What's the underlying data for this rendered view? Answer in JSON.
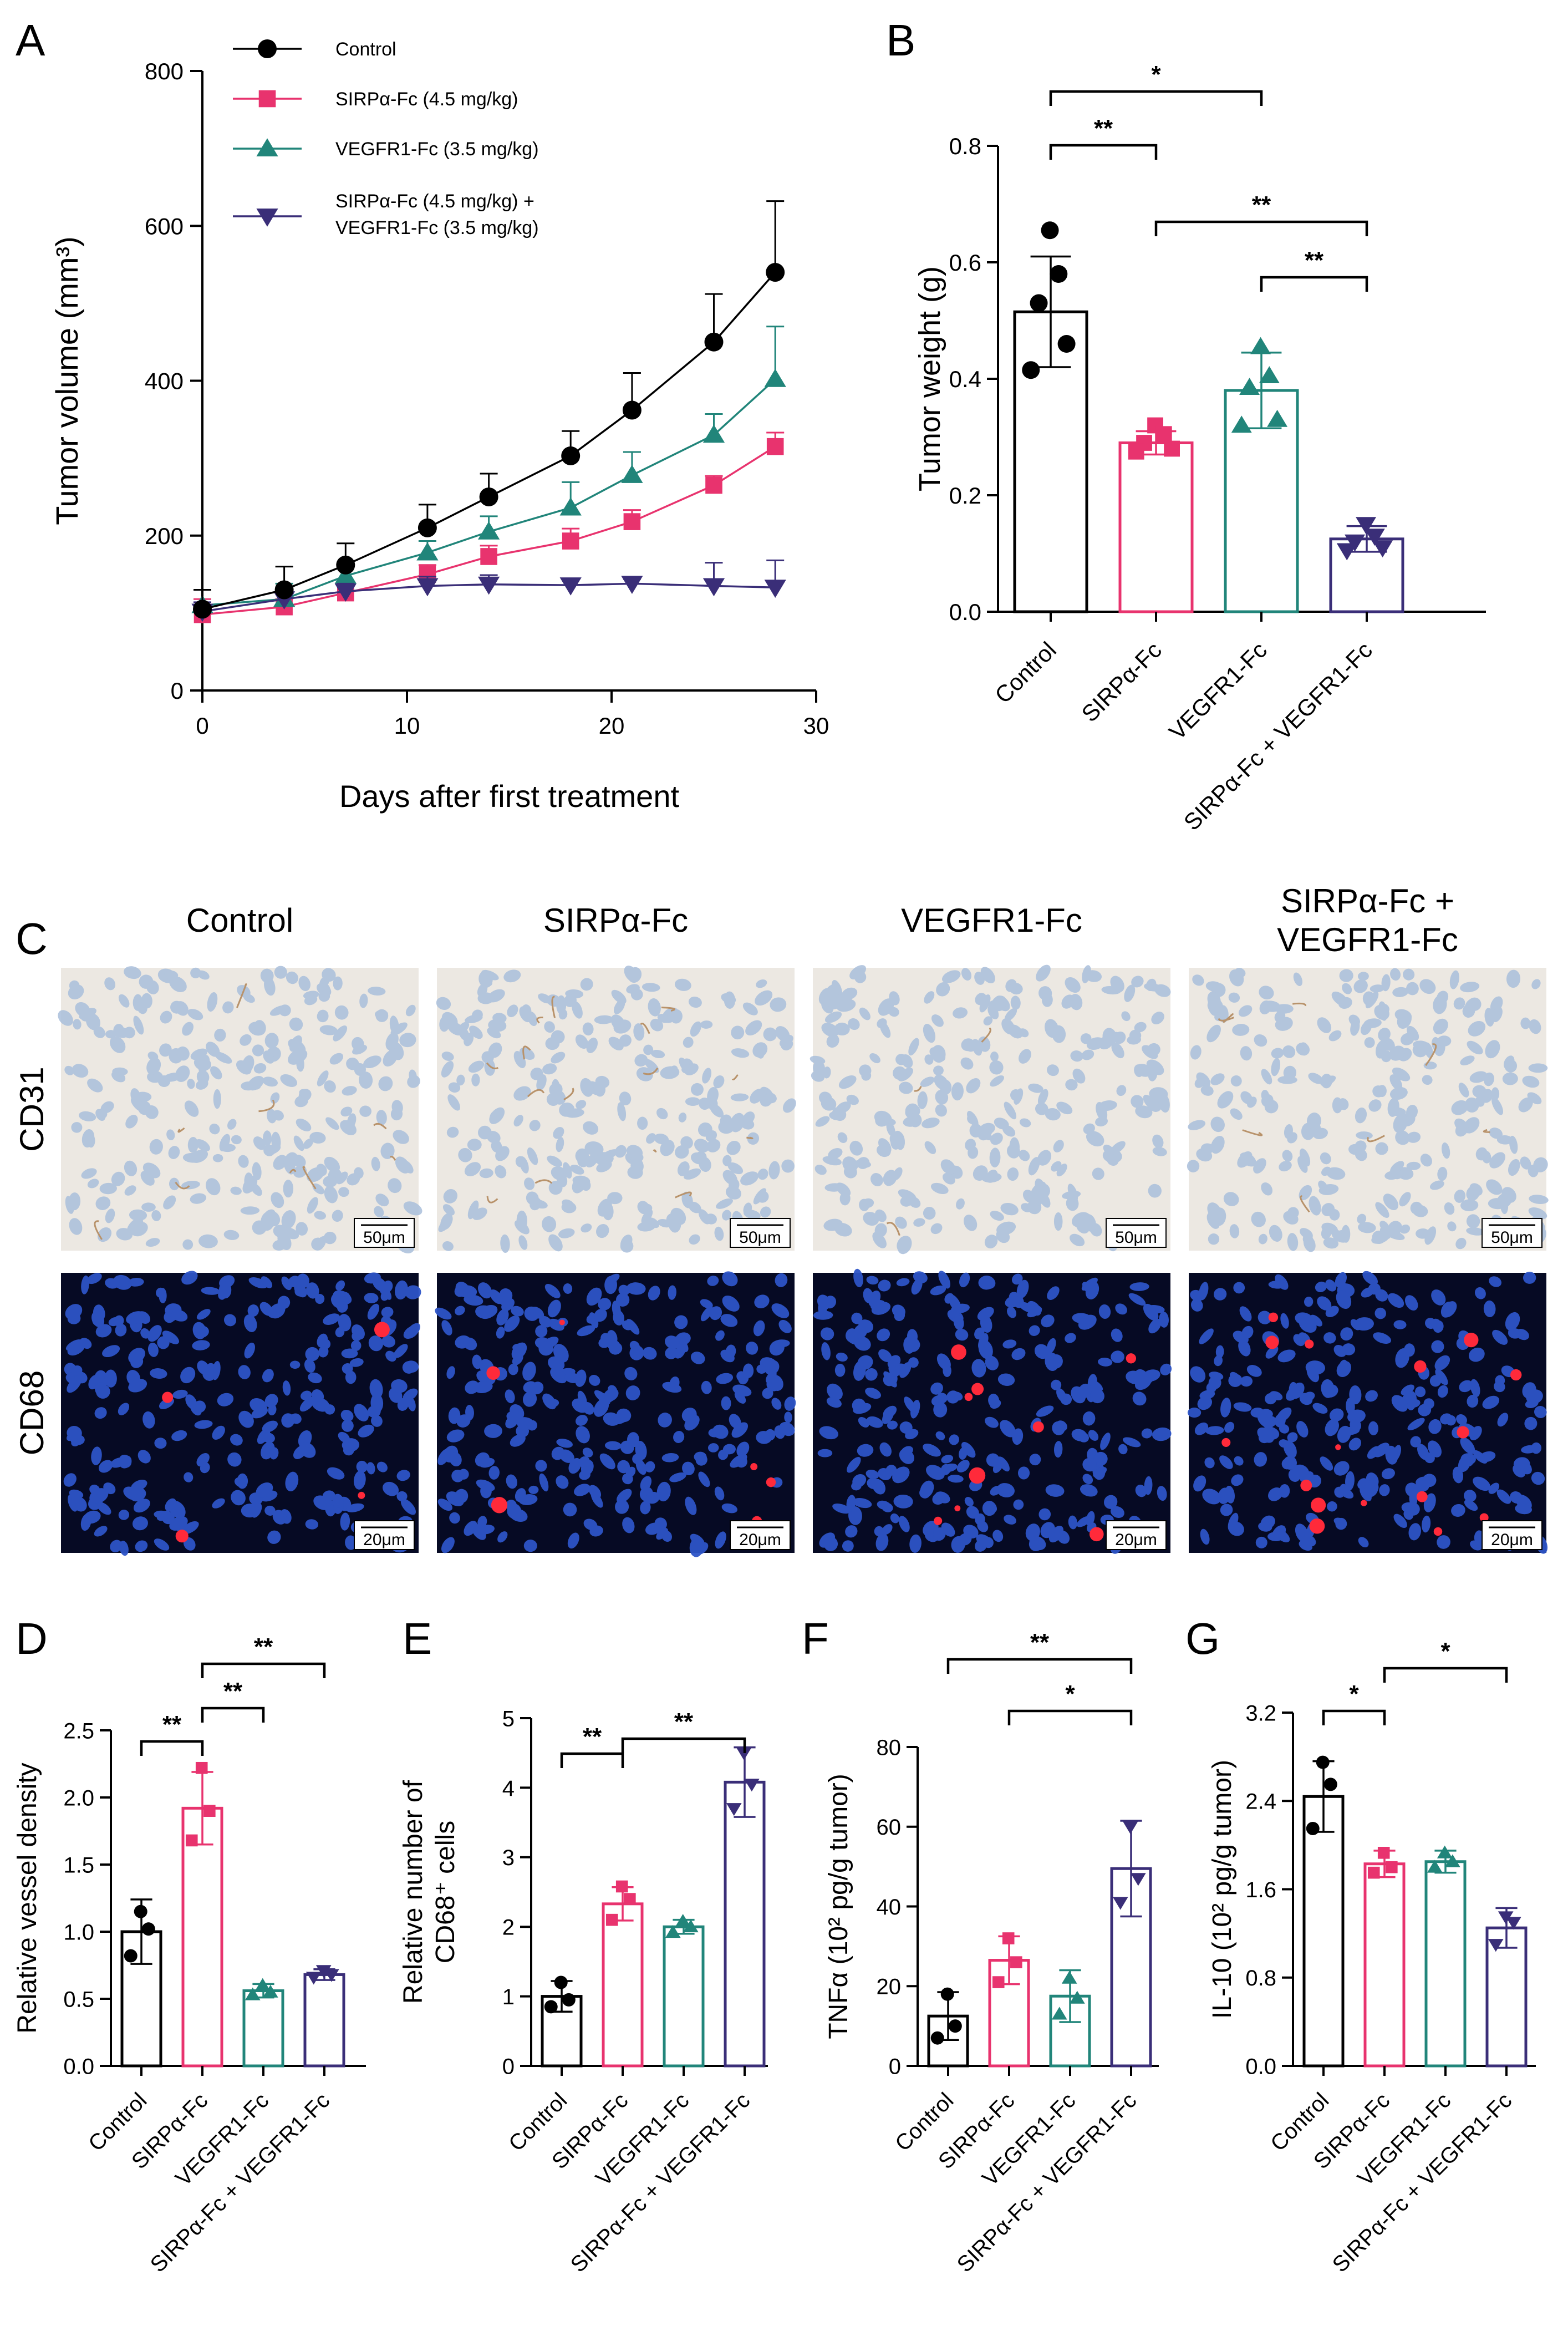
{
  "colors": {
    "control": "#000000",
    "sirpa": "#E8336E",
    "vegfr1": "#21857A",
    "combo": "#3A2E78",
    "ihc_bg": "#ECE8E2",
    "ihc_nuclei": "#A9BEDB",
    "ihc_stain": "#B8926A",
    "if_bg": "#060A24",
    "if_nuclei": "#2E55C8",
    "if_stain": "#FF2A3A"
  },
  "panels": {
    "A": {
      "label": "A"
    },
    "B": {
      "label": "B"
    },
    "C": {
      "label": "C"
    },
    "D": {
      "label": "D"
    },
    "E": {
      "label": "E"
    },
    "F": {
      "label": "F"
    },
    "G": {
      "label": "G"
    }
  },
  "groups": [
    "Control",
    "SIRPα-Fc",
    "VEGFR1-Fc",
    "SIRPα-Fc + VEGFR1-Fc"
  ],
  "chart_data": [
    {
      "panel": "A",
      "type": "line",
      "xlabel": "Days after first treatment",
      "ylabel": "Tumor volume (mm³)",
      "xlim": [
        0,
        30
      ],
      "ylim": [
        0,
        800
      ],
      "xticks": [
        0,
        10,
        20,
        30
      ],
      "yticks": [
        0,
        200,
        400,
        600,
        800
      ],
      "x": [
        0,
        4,
        7,
        11,
        14,
        18,
        21,
        25,
        28
      ],
      "series": [
        {
          "name": "Control",
          "marker": "circle",
          "values": [
            105,
            130,
            162,
            210,
            250,
            303,
            362,
            450,
            540
          ],
          "errors": [
            25,
            30,
            28,
            30,
            30,
            32,
            48,
            62,
            92
          ]
        },
        {
          "name": "SIRPα-Fc  (4.5 mg/kg)",
          "marker": "square",
          "values": [
            98,
            108,
            126,
            150,
            173,
            193,
            218,
            265,
            315
          ],
          "errors": [
            20,
            10,
            10,
            12,
            14,
            16,
            15,
            12,
            18
          ]
        },
        {
          "name": "VEGFR1-Fc  (3.5 mg/kg)",
          "marker": "triangle-up",
          "values": [
            110,
            118,
            148,
            178,
            205,
            236,
            278,
            330,
            402
          ],
          "errors": [
            20,
            20,
            15,
            15,
            20,
            33,
            30,
            27,
            68
          ]
        },
        {
          "name": "SIRPα-Fc  (4.5 mg/kg) +\nVEGFR1-Fc  (3.5 mg/kg)",
          "marker": "triangle-down",
          "values": [
            102,
            118,
            128,
            135,
            137,
            136,
            138,
            135,
            133
          ],
          "errors": [
            12,
            15,
            10,
            12,
            12,
            8,
            6,
            30,
            35
          ]
        }
      ]
    },
    {
      "panel": "B",
      "type": "bar",
      "ylabel": "Tumor weight (g)",
      "ylim": [
        0,
        0.8
      ],
      "yticks": [
        "0.0",
        "0.2",
        "0.4",
        "0.6",
        "0.8"
      ],
      "categories": [
        "Control",
        "SIRPα-Fc",
        "VEGFR1-Fc",
        "SIRPα-Fc + VEGFR1-Fc"
      ],
      "values": [
        0.515,
        0.29,
        0.38,
        0.125
      ],
      "errors": [
        0.095,
        0.02,
        0.065,
        0.022
      ],
      "points": [
        [
          0.655,
          0.58,
          0.53,
          0.46,
          0.415
        ],
        [
          0.32,
          0.305,
          0.29,
          0.28,
          0.275
        ],
        [
          0.455,
          0.405,
          0.385,
          0.33,
          0.32
        ],
        [
          0.15,
          0.13,
          0.12,
          0.11,
          0.105
        ]
      ],
      "markers": [
        "circle",
        "square",
        "triangle-up",
        "triangle-down"
      ],
      "comparisons": [
        {
          "from": 0,
          "to": 2,
          "label": "*"
        },
        {
          "from": 0,
          "to": 1,
          "label": "**"
        },
        {
          "from": 1,
          "to": 3,
          "label": "**"
        },
        {
          "from": 2,
          "to": 3,
          "label": "**"
        }
      ]
    },
    {
      "panel": "D",
      "type": "bar",
      "ylabel": "Relative vessel density",
      "ylim": [
        0,
        2.5
      ],
      "yticks": [
        "0.0",
        "0.5",
        "1.0",
        "1.5",
        "2.0",
        "2.5"
      ],
      "categories": [
        "Control",
        "SIRPα-Fc",
        "VEGFR1-Fc",
        "SIRPα-Fc + VEGFR1-Fc"
      ],
      "values": [
        1.0,
        1.92,
        0.56,
        0.68
      ],
      "errors": [
        0.24,
        0.27,
        0.05,
        0.04
      ],
      "points": [
        [
          1.15,
          1.02,
          0.82
        ],
        [
          2.22,
          1.9,
          1.68
        ],
        [
          0.6,
          0.55,
          0.53
        ],
        [
          0.71,
          0.68,
          0.66
        ]
      ],
      "markers": [
        "circle",
        "square",
        "triangle-up",
        "triangle-down"
      ],
      "comparisons": [
        {
          "from": 1,
          "to": 3,
          "label": "**"
        },
        {
          "from": 1,
          "to": 2,
          "label": "**"
        },
        {
          "from": 0,
          "to": 1,
          "label": "**"
        }
      ]
    },
    {
      "panel": "E",
      "type": "bar",
      "ylabel": "Relative number of\nCD68⁺ cells",
      "ylim": [
        0,
        5
      ],
      "yticks": [
        "0",
        "1",
        "2",
        "3",
        "4",
        "5"
      ],
      "categories": [
        "Control",
        "SIRPα-Fc",
        "VEGFR1-Fc",
        "SIRPα-Fc + VEGFR1-Fc"
      ],
      "values": [
        1.0,
        2.33,
        2.0,
        4.08
      ],
      "errors": [
        0.22,
        0.24,
        0.1,
        0.5
      ],
      "points": [
        [
          1.2,
          0.95,
          0.85
        ],
        [
          2.58,
          2.4,
          2.1
        ],
        [
          2.08,
          2.0,
          1.92
        ],
        [
          4.5,
          4.05,
          3.7
        ]
      ],
      "markers": [
        "circle",
        "square",
        "triangle-up",
        "triangle-down"
      ],
      "comparisons": [
        {
          "from": 1,
          "to": 3,
          "label": "**"
        },
        {
          "from": 0,
          "to": 1,
          "label": "**"
        }
      ]
    },
    {
      "panel": "F",
      "type": "bar",
      "ylabel": "TNFα (10² pg/g tumor)",
      "ylim": [
        0,
        80
      ],
      "yticks": [
        "0",
        "20",
        "40",
        "60",
        "80"
      ],
      "categories": [
        "Control",
        "SIRPα-Fc",
        "VEGFR1-Fc",
        "SIRPα-Fc + VEGFR1-Fc"
      ],
      "values": [
        12.5,
        26.5,
        17.5,
        49.5
      ],
      "errors": [
        6,
        6,
        6.5,
        12
      ],
      "points": [
        [
          18,
          10,
          7
        ],
        [
          32,
          26,
          21
        ],
        [
          22,
          17,
          13
        ],
        [
          60,
          47,
          41
        ]
      ],
      "markers": [
        "circle",
        "square",
        "triangle-up",
        "triangle-down"
      ],
      "comparisons": [
        {
          "from": 0,
          "to": 3,
          "label": "**"
        },
        {
          "from": 1,
          "to": 3,
          "label": "*"
        }
      ]
    },
    {
      "panel": "G",
      "type": "bar",
      "ylabel": "IL-10 (10² pg/g tumor)",
      "ylim": [
        0,
        3.2
      ],
      "yticks": [
        "0.0",
        "0.8",
        "1.6",
        "2.4",
        "3.2"
      ],
      "categories": [
        "Control",
        "SIRPα-Fc",
        "VEGFR1-Fc",
        "SIRPα-Fc + VEGFR1-Fc"
      ],
      "values": [
        2.44,
        1.83,
        1.85,
        1.25
      ],
      "errors": [
        0.32,
        0.12,
        0.1,
        0.18
      ],
      "points": [
        [
          2.75,
          2.55,
          2.15
        ],
        [
          1.93,
          1.8,
          1.75
        ],
        [
          1.93,
          1.85,
          1.8
        ],
        [
          1.35,
          1.3,
          1.1
        ]
      ],
      "markers": [
        "circle",
        "square",
        "triangle-up",
        "triangle-down"
      ],
      "comparisons": [
        {
          "from": 0,
          "to": 1,
          "label": "*"
        },
        {
          "from": 1,
          "to": 3,
          "label": "*"
        }
      ]
    }
  ],
  "micro": {
    "columns": [
      "Control",
      "SIRPα-Fc",
      "VEGFR1-Fc",
      "SIRPα-Fc +\nVEGFR1-Fc"
    ],
    "rows": [
      {
        "label": "CD31",
        "scale": "50μm",
        "style": "ihc",
        "stain_counts": [
          9,
          16,
          3,
          8
        ]
      },
      {
        "label": "CD68",
        "scale": "20μm",
        "style": "if",
        "stain_counts": [
          4,
          7,
          9,
          16
        ]
      }
    ]
  }
}
